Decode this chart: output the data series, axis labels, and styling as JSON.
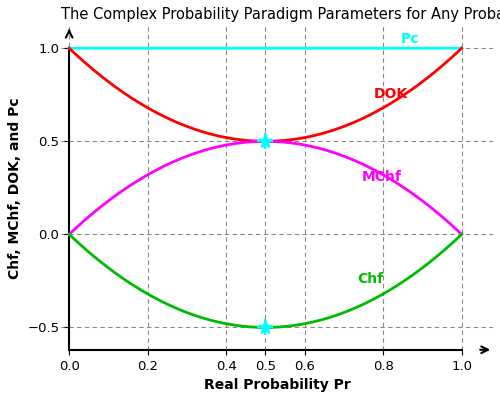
{
  "title": "The Complex Probability Paradigm Parameters for Any Probability Distribution",
  "xlabel": "Real Probability Pr",
  "ylabel": "Chf, MChf, DOK, and Pc",
  "xlim": [
    -0.02,
    1.08
  ],
  "ylim": [
    -0.62,
    1.12
  ],
  "xticks": [
    0,
    0.2,
    0.4,
    0.5,
    0.6,
    0.8,
    1.0
  ],
  "yticks": [
    -0.5,
    0,
    0.5,
    1
  ],
  "color_Pc": "#00FFFF",
  "color_DOK": "#FF0000",
  "color_MChf": "#FF00FF",
  "color_Chf": "#00BB00",
  "color_markers": "#00FFFF",
  "color_grid": "#888888",
  "label_Pc": "Pc",
  "label_DOK": "DOK",
  "label_MChf": "MChf",
  "label_Chf": "Chf",
  "linewidth": 2.0,
  "title_fontsize": 10.5,
  "label_fontsize": 10,
  "tick_fontsize": 9.5
}
